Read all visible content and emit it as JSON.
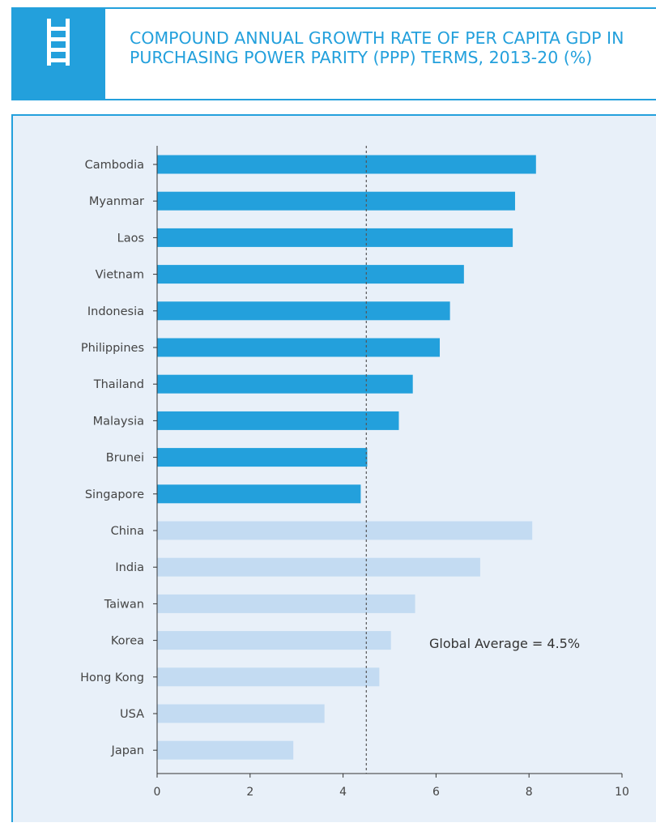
{
  "header": {
    "icon": "ladder-icon",
    "title": "COMPOUND ANNUAL GROWTH RATE OF PER CAPITA GDP IN PURCHASING POWER PARITY (PPP) TERMS, 2013-20 (%)"
  },
  "colors": {
    "accent": "#23a0dc",
    "asean_bar": "#23a0dc",
    "other_bar": "#c3dbf2",
    "panel_bg": "#e8f0f9",
    "average_line": "#555555"
  },
  "chart_data": {
    "type": "bar",
    "orientation": "horizontal",
    "title": "COMPOUND ANNUAL GROWTH RATE OF PER CAPITA GDP IN PURCHASING POWER PARITY (PPP) TERMS, 2013-20 (%)",
    "xlabel": "",
    "ylabel": "",
    "xlim": [
      0,
      10
    ],
    "xticks": [
      0,
      2,
      4,
      6,
      8,
      10
    ],
    "grid": false,
    "categories": [
      "Cambodia",
      "Myanmar",
      "Laos",
      "Vietnam",
      "Indonesia",
      "Philippines",
      "Thailand",
      "Malaysia",
      "Brunei",
      "Singapore",
      "China",
      "India",
      "Taiwan",
      "Korea",
      "Hong Kong",
      "USA",
      "Japan"
    ],
    "values": [
      8.15,
      7.7,
      7.65,
      6.6,
      6.3,
      6.08,
      5.5,
      5.2,
      4.52,
      4.38,
      8.07,
      6.95,
      5.55,
      5.03,
      4.78,
      3.6,
      2.93
    ],
    "groups": [
      "asean",
      "asean",
      "asean",
      "asean",
      "asean",
      "asean",
      "asean",
      "asean",
      "asean",
      "asean",
      "other",
      "other",
      "other",
      "other",
      "other",
      "other",
      "other"
    ],
    "reference_line": {
      "value": 4.5,
      "label": "Global Average = 4.5%"
    }
  }
}
